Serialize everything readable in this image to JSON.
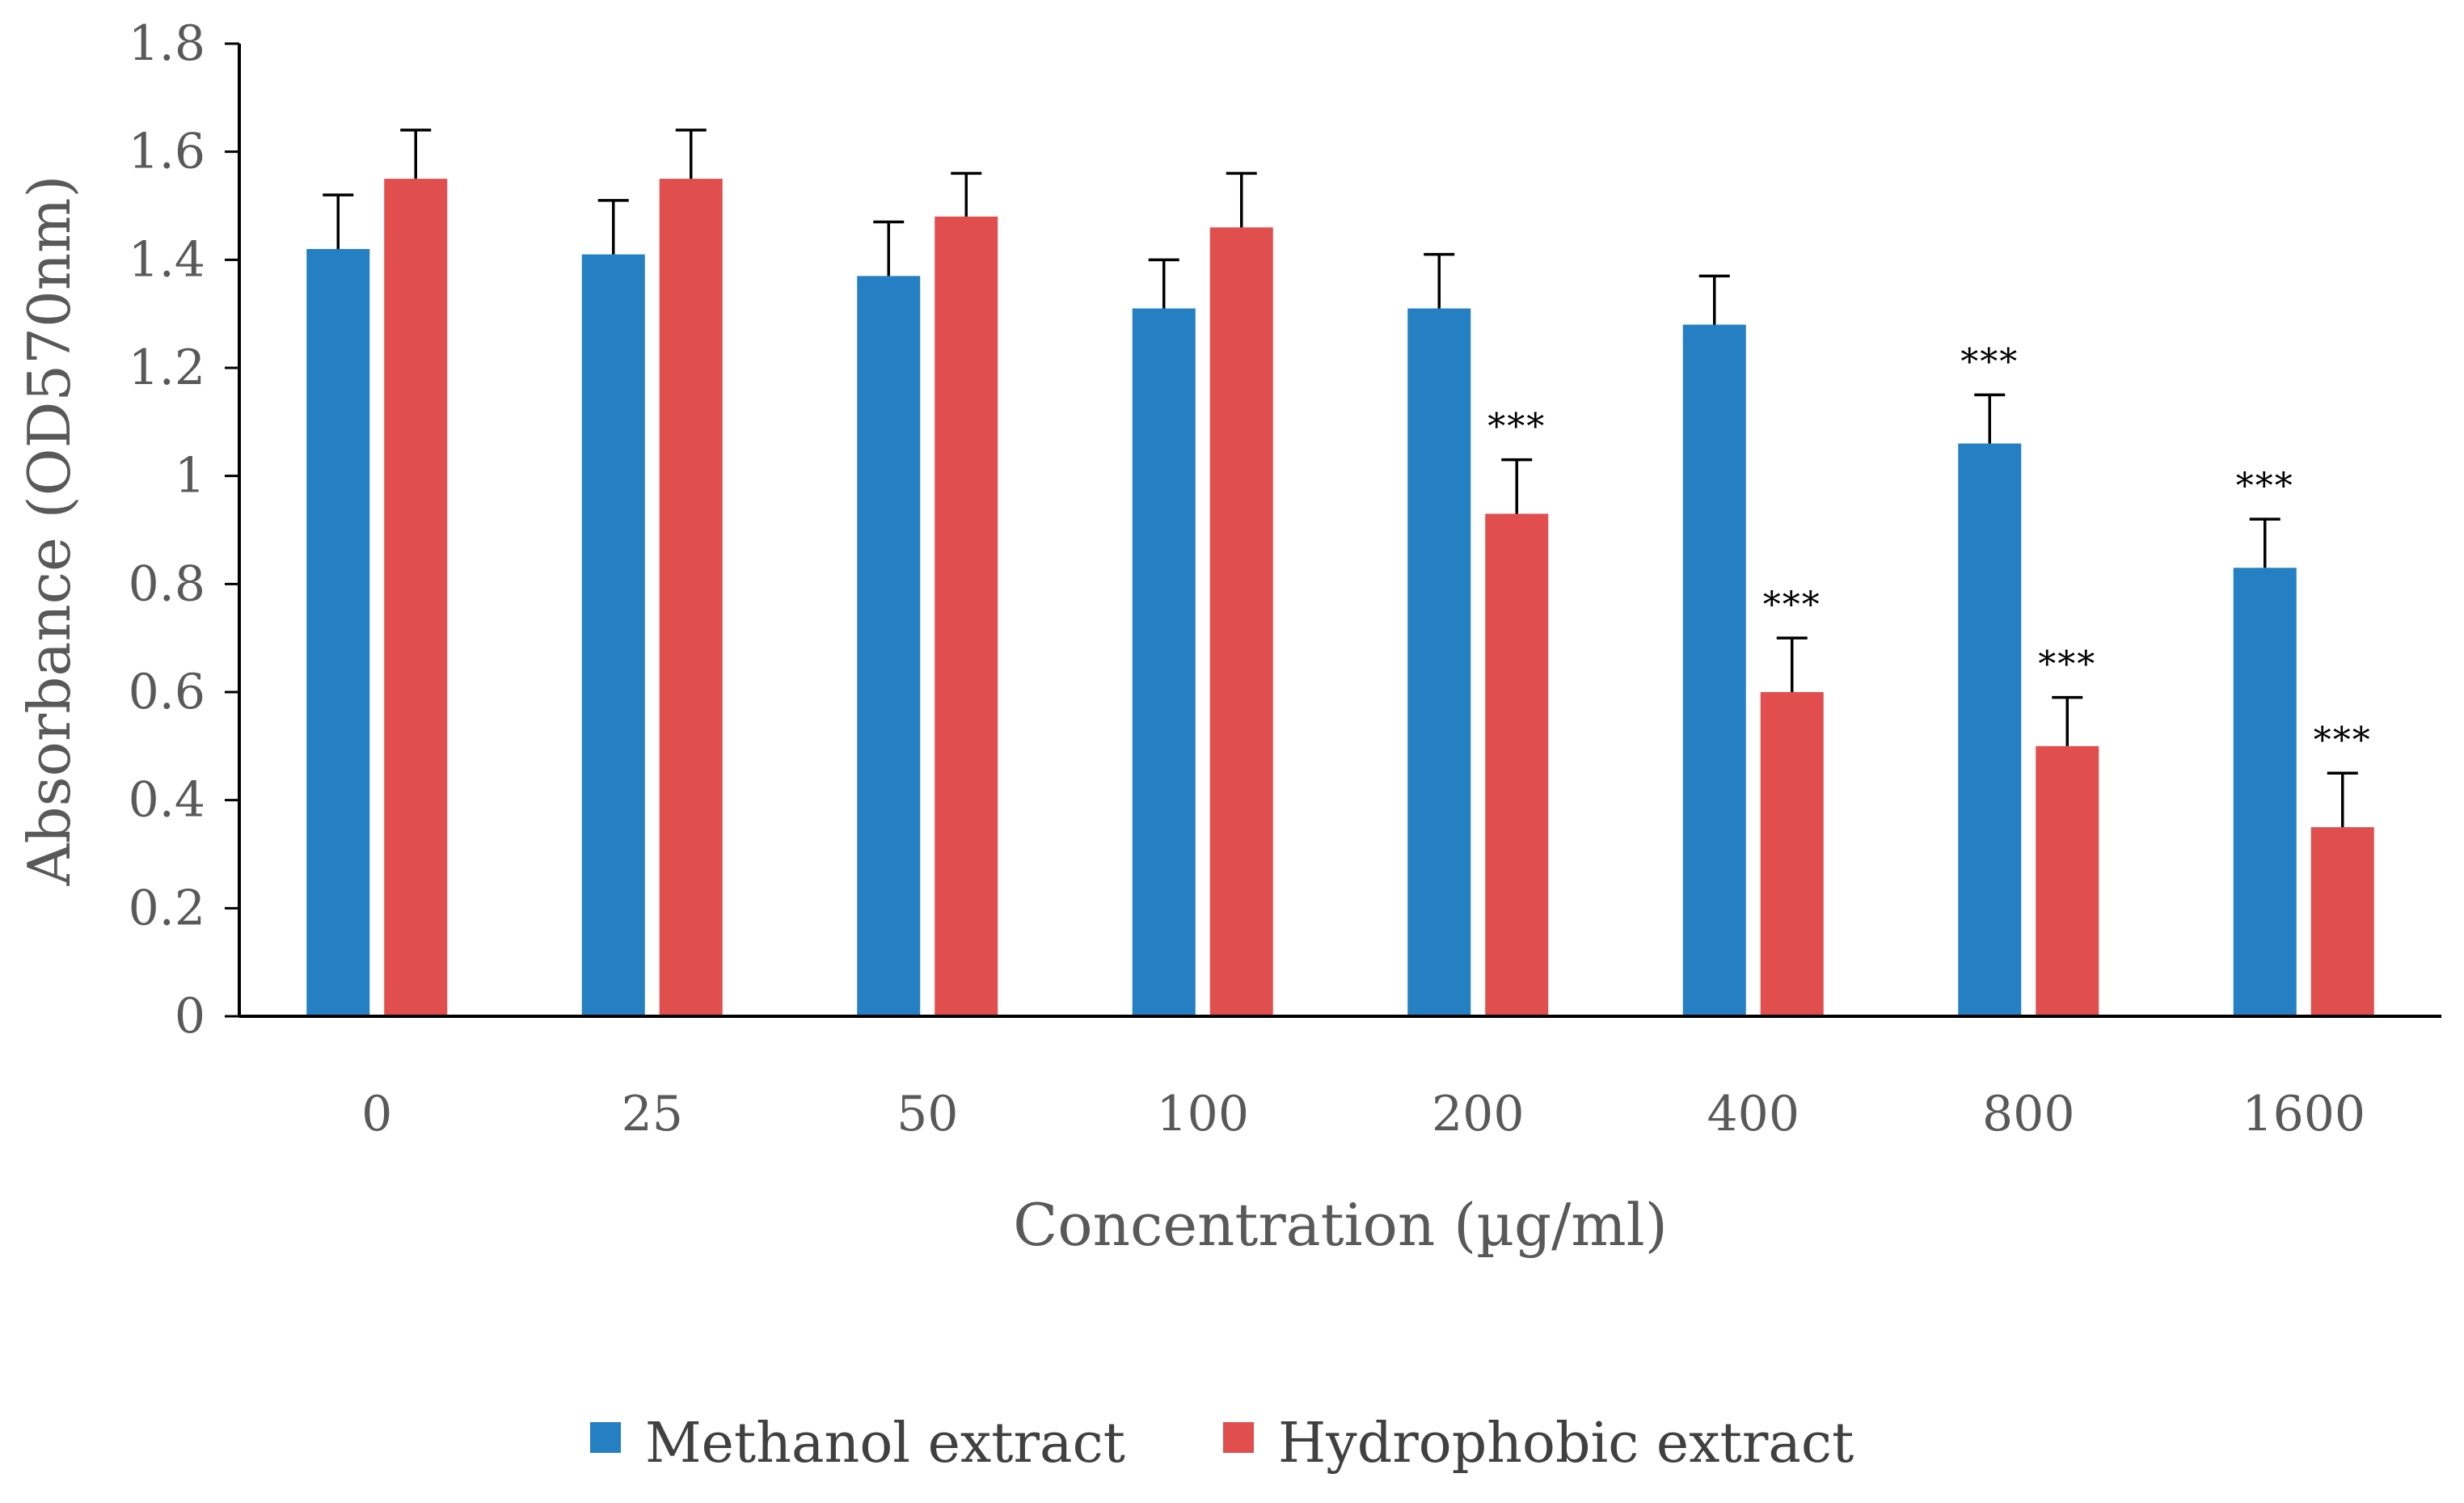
{
  "chart_data": {
    "type": "bar",
    "title": "",
    "xlabel": "Concentration (µg/ml)",
    "ylabel": "Absorbance (OD570nm)",
    "ylim": [
      0,
      1.8
    ],
    "yticks": [
      "0",
      "0.2",
      "0.4",
      "0.6",
      "0.8",
      "1",
      "1.2",
      "1.4",
      "1.6",
      "1.8"
    ],
    "categories": [
      "0",
      "25",
      "50",
      "100",
      "200",
      "400",
      "800",
      "1600"
    ],
    "legend_position": "bottom-center",
    "error_bars": true,
    "series": [
      {
        "name": "Methanol extract",
        "color": "#2480C3",
        "values": [
          1.42,
          1.41,
          1.37,
          1.31,
          1.31,
          1.28,
          1.06,
          0.83
        ],
        "errors": [
          0.1,
          0.1,
          0.1,
          0.09,
          0.1,
          0.09,
          0.09,
          0.09
        ],
        "significance": [
          "",
          "",
          "",
          "",
          "",
          "",
          "***",
          "***"
        ]
      },
      {
        "name": "Hydrophobic extract",
        "color": "#E04F4E",
        "values": [
          1.55,
          1.55,
          1.48,
          1.46,
          0.93,
          0.6,
          0.5,
          0.35
        ],
        "errors": [
          0.09,
          0.09,
          0.08,
          0.1,
          0.1,
          0.1,
          0.09,
          0.1
        ],
        "significance": [
          "",
          "",
          "",
          "",
          "***",
          "***",
          "***",
          "***"
        ]
      }
    ]
  }
}
